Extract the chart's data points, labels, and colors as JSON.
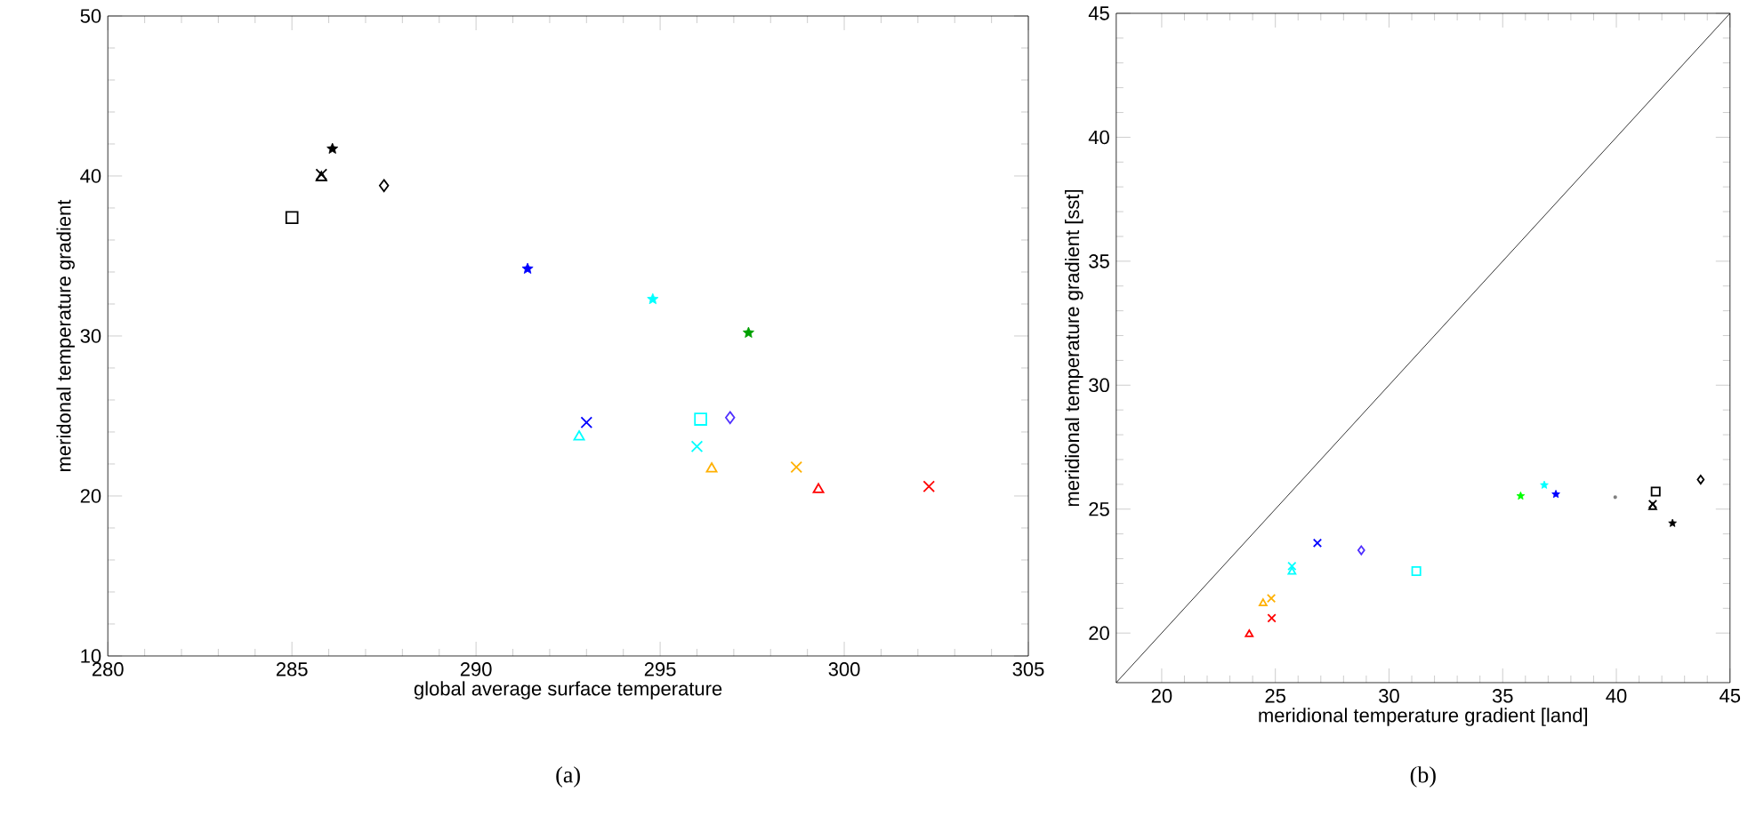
{
  "chart_data": [
    {
      "type": "scatter",
      "xlabel": "global average surface temperature",
      "ylabel": "meridonal temperature gradient",
      "xlim": [
        280,
        305
      ],
      "ylim": [
        10,
        50
      ],
      "xticks": [
        280,
        285,
        290,
        295,
        300,
        305
      ],
      "yticks": [
        10,
        20,
        30,
        40,
        50
      ],
      "annotations": [
        "(a)"
      ],
      "series": [
        {
          "color": "#000000",
          "marker": "star",
          "x": [
            286.1
          ],
          "values": [
            41.7
          ]
        },
        {
          "color": "#000000",
          "marker": "cross",
          "x": [
            285.8
          ],
          "values": [
            40.1
          ]
        },
        {
          "color": "#000000",
          "marker": "triangle",
          "x": [
            285.8
          ],
          "values": [
            39.9
          ]
        },
        {
          "color": "#000000",
          "marker": "diamond",
          "x": [
            287.5
          ],
          "values": [
            39.4
          ]
        },
        {
          "color": "#000000",
          "marker": "square",
          "x": [
            285.0
          ],
          "values": [
            37.4
          ]
        },
        {
          "color": "#0000ff",
          "marker": "star",
          "x": [
            291.4
          ],
          "values": [
            34.2
          ]
        },
        {
          "color": "#00ffff",
          "marker": "star",
          "x": [
            294.8
          ],
          "values": [
            32.3
          ]
        },
        {
          "color": "#00a000",
          "marker": "star",
          "x": [
            297.4
          ],
          "values": [
            30.2
          ]
        },
        {
          "color": "#0000ff",
          "marker": "cross",
          "x": [
            293.0
          ],
          "values": [
            24.6
          ]
        },
        {
          "color": "#00ffff",
          "marker": "triangle",
          "x": [
            292.8
          ],
          "values": [
            23.7
          ]
        },
        {
          "color": "#00ffff",
          "marker": "square",
          "x": [
            296.1
          ],
          "values": [
            24.8
          ]
        },
        {
          "color": "#5030ff",
          "marker": "diamond",
          "x": [
            296.9
          ],
          "values": [
            24.9
          ]
        },
        {
          "color": "#00ffff",
          "marker": "cross",
          "x": [
            296.0
          ],
          "values": [
            23.1
          ]
        },
        {
          "color": "#ffb000",
          "marker": "triangle",
          "x": [
            296.4
          ],
          "values": [
            21.7
          ]
        },
        {
          "color": "#ffb000",
          "marker": "cross",
          "x": [
            298.7
          ],
          "values": [
            21.8
          ]
        },
        {
          "color": "#ff0000",
          "marker": "triangle",
          "x": [
            299.3
          ],
          "values": [
            20.4
          ]
        },
        {
          "color": "#ff0000",
          "marker": "cross",
          "x": [
            302.3
          ],
          "values": [
            20.6
          ]
        }
      ]
    },
    {
      "type": "scatter",
      "xlabel": "meridional temperature gradient [land]",
      "ylabel": "meridional temperature gradient [sst]",
      "xlim": [
        18,
        45
      ],
      "ylim": [
        18,
        45
      ],
      "xticks": [
        20,
        25,
        30,
        35,
        40,
        45
      ],
      "yticks": [
        20,
        25,
        30,
        35,
        40,
        45
      ],
      "annotations": [
        "(b)"
      ],
      "series": [
        {
          "type": "line",
          "color": "#000000",
          "marker": "none",
          "x": [
            18,
            45
          ],
          "values": [
            18,
            45
          ]
        },
        {
          "color": "#ff0000",
          "marker": "triangle",
          "x": [
            23.85
          ],
          "values": [
            19.95
          ]
        },
        {
          "color": "#ff0000",
          "marker": "cross",
          "x": [
            24.84
          ],
          "values": [
            20.6
          ]
        },
        {
          "color": "#ffb000",
          "marker": "triangle",
          "x": [
            24.46
          ],
          "values": [
            21.2
          ]
        },
        {
          "color": "#ffb000",
          "marker": "cross",
          "x": [
            24.82
          ],
          "values": [
            21.4
          ]
        },
        {
          "color": "#00ffff",
          "marker": "triangle",
          "x": [
            25.73
          ],
          "values": [
            22.47
          ]
        },
        {
          "color": "#00ffff",
          "marker": "cross",
          "x": [
            25.73
          ],
          "values": [
            22.7
          ]
        },
        {
          "color": "#0000ff",
          "marker": "cross",
          "x": [
            26.85
          ],
          "values": [
            23.63
          ]
        },
        {
          "color": "#5030ff",
          "marker": "diamond",
          "x": [
            28.78
          ],
          "values": [
            23.34
          ]
        },
        {
          "color": "#00ffff",
          "marker": "square",
          "x": [
            31.2
          ],
          "values": [
            22.5
          ]
        },
        {
          "color": "#00ff00",
          "marker": "star",
          "x": [
            35.79
          ],
          "values": [
            25.53
          ]
        },
        {
          "color": "#00ffff",
          "marker": "star",
          "x": [
            36.83
          ],
          "values": [
            25.97
          ]
        },
        {
          "color": "#0000ff",
          "marker": "star",
          "x": [
            37.34
          ],
          "values": [
            25.6
          ]
        },
        {
          "color": "#808080",
          "marker": "circle",
          "x": [
            39.95
          ],
          "values": [
            25.48
          ]
        },
        {
          "color": "#000000",
          "marker": "square",
          "x": [
            41.73
          ],
          "values": [
            25.71
          ]
        },
        {
          "color": "#000000",
          "marker": "cross",
          "x": [
            41.6
          ],
          "values": [
            25.2
          ]
        },
        {
          "color": "#000000",
          "marker": "triangle",
          "x": [
            41.6
          ],
          "values": [
            25.08
          ]
        },
        {
          "color": "#000000",
          "marker": "star",
          "x": [
            42.47
          ],
          "values": [
            24.43
          ]
        },
        {
          "color": "#000000",
          "marker": "diamond",
          "x": [
            43.71
          ],
          "values": [
            26.19
          ]
        }
      ]
    }
  ]
}
